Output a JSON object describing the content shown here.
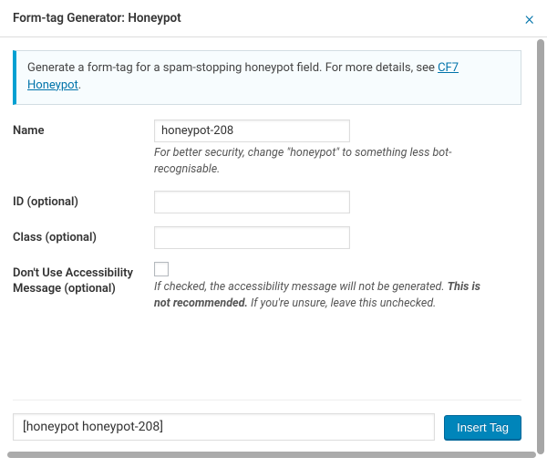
{
  "header": {
    "title": "Form-tag Generator: Honeypot"
  },
  "notice": {
    "text_before_link": "Generate a form-tag for a spam-stopping honeypot field. For more details, see ",
    "link_text": "CF7 Honeypot",
    "text_after_link": "."
  },
  "fields": {
    "name": {
      "label": "Name",
      "value": "honeypot-208",
      "hint": "For better security, change \"honeypot\" to something less bot-recognisable."
    },
    "id": {
      "label": "ID (optional)",
      "value": ""
    },
    "class": {
      "label": "Class (optional)",
      "value": ""
    },
    "no_a11y": {
      "label": "Don't Use Accessibility Message (optional)",
      "checked": false,
      "hint_pre": "If checked, the accessibility message will not be generated. ",
      "hint_strong": "This is not recommended.",
      "hint_post": " If you're unsure, leave this unchecked."
    }
  },
  "footer": {
    "tag_output": "[honeypot honeypot-208]",
    "insert_label": "Insert Tag"
  },
  "colors": {
    "link": "#0073aa",
    "primary_btn_bg": "#0085ba",
    "notice_border": "#00a0d2"
  }
}
